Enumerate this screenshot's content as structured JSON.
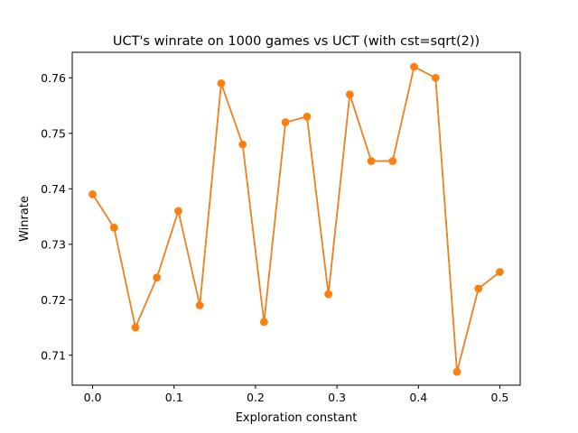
{
  "chart_data": {
    "type": "line",
    "title": "UCT's winrate on 1000 games vs UCT (with cst=sqrt(2))",
    "xlabel": "Exploration constant",
    "ylabel": "Winrate",
    "xlim": [
      -0.025,
      0.525
    ],
    "ylim": [
      0.7046,
      0.7646
    ],
    "xticks": [
      0.0,
      0.1,
      0.2,
      0.3,
      0.4,
      0.5
    ],
    "xtick_labels": [
      "0.0",
      "0.1",
      "0.2",
      "0.3",
      "0.4",
      "0.5"
    ],
    "yticks": [
      0.71,
      0.72,
      0.73,
      0.74,
      0.75,
      0.76
    ],
    "ytick_labels": [
      "0.71",
      "0.72",
      "0.73",
      "0.74",
      "0.75",
      "0.76"
    ],
    "grid": false,
    "x": [
      0.0,
      0.0263,
      0.0526,
      0.0789,
      0.1053,
      0.1316,
      0.1579,
      0.1842,
      0.2105,
      0.2368,
      0.2632,
      0.2895,
      0.3158,
      0.3421,
      0.3684,
      0.3947,
      0.4211,
      0.4474,
      0.4737,
      0.5
    ],
    "series": [
      {
        "color": "#1f77b4",
        "marker": "none",
        "values": [
          0.739,
          0.733,
          0.715,
          0.724,
          0.736,
          0.719,
          0.759,
          0.748,
          0.716,
          0.752,
          0.753,
          0.721,
          0.757,
          0.745,
          0.745,
          0.762,
          0.76,
          0.707,
          0.722,
          0.725
        ]
      },
      {
        "color": "#ff7f0e",
        "marker": "circle",
        "values": [
          0.739,
          0.733,
          0.715,
          0.724,
          0.736,
          0.719,
          0.759,
          0.748,
          0.716,
          0.752,
          0.753,
          0.721,
          0.757,
          0.745,
          0.745,
          0.762,
          0.76,
          0.707,
          0.722,
          0.725
        ]
      }
    ]
  }
}
